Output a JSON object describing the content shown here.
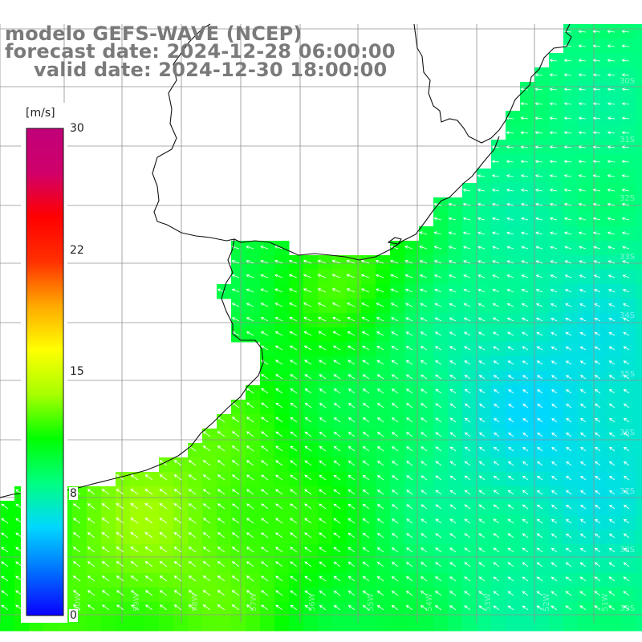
{
  "title": {
    "line1": "modelo GEFS-WAVE (NCEP)",
    "line2": "forecast date: 2024-12-28 06:00:00",
    "line3": "valid date: 2024-12-30 18:00:00"
  },
  "colorbar": {
    "unit": "[m/s]",
    "ticks": [
      "30",
      "22",
      "15",
      "8",
      "0"
    ],
    "tick_values": [
      30,
      22,
      15,
      8,
      0
    ],
    "min": 0,
    "max": 30,
    "colors": [
      "#0a00ff",
      "#0070ff",
      "#00d8ff",
      "#00ff80",
      "#00ff00",
      "#a8ff00",
      "#ffff00",
      "#ffa800",
      "#ff3000",
      "#ff0000",
      "#d0006a",
      "#c0007a"
    ]
  },
  "map": {
    "type": "wind-speed-field",
    "variable": "wind speed",
    "unit": "m/s",
    "land_color": "#ffffff",
    "grid_color": "#909090",
    "coast_color": "#111111",
    "arrow_color": "#ffffff",
    "lat_labels": [
      "30S",
      "31S",
      "32S",
      "33S",
      "34S",
      "35S",
      "36S",
      "37S",
      "38S",
      "39S",
      "40S",
      "41S"
    ],
    "lon_labels": [
      "60W",
      "59W",
      "58W",
      "57W",
      "56W",
      "55W",
      "54W",
      "53W",
      "52W",
      "51W",
      "50W"
    ]
  }
}
